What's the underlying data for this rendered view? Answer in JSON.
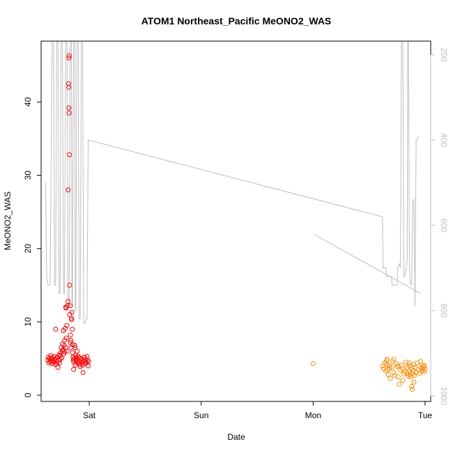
{
  "chart_data": {
    "type": "scatter",
    "title": "ATOM1 Northeast_Pacific MeONO2_WAS",
    "xlabel": "Date",
    "ylabel": "MeONO2_WAS",
    "xlim": [
      -0.43,
      3.05
    ],
    "ylim": [
      -0.85,
      48.3
    ],
    "y2lim": [
      1013,
      168
    ],
    "x_ticks": [
      {
        "value": 0,
        "label": "Sat"
      },
      {
        "value": 1,
        "label": "Sun"
      },
      {
        "value": 2,
        "label": "Mon"
      },
      {
        "value": 3,
        "label": "Tue"
      }
    ],
    "y_ticks": [
      0,
      10,
      20,
      30,
      40
    ],
    "y2_ticks": [
      200,
      400,
      600,
      800,
      1000
    ],
    "grid": false,
    "legend": "none",
    "colors": {
      "series_red": "#ff0000",
      "series_orange": "#ff8c00",
      "altitude_line": "#bebebe",
      "axis": "#000000"
    },
    "series": [
      {
        "color": "#ff0000",
        "points": [
          [
            -0.37,
            4.8
          ],
          [
            -0.365,
            5.2
          ],
          [
            -0.36,
            4.4
          ],
          [
            -0.355,
            5.0
          ],
          [
            -0.35,
            4.6
          ],
          [
            -0.345,
            5.4
          ],
          [
            -0.34,
            4.9
          ],
          [
            -0.335,
            4.3
          ],
          [
            -0.33,
            5.1
          ],
          [
            -0.325,
            4.7
          ],
          [
            -0.32,
            4.5
          ],
          [
            -0.315,
            5.3
          ],
          [
            -0.31,
            4.9
          ],
          [
            -0.305,
            4.2
          ],
          [
            -0.3,
            9.0
          ],
          [
            -0.3,
            5.0
          ],
          [
            -0.295,
            4.6
          ],
          [
            -0.29,
            4.3
          ],
          [
            -0.285,
            5.2
          ],
          [
            -0.28,
            3.8
          ],
          [
            -0.275,
            4.7
          ],
          [
            -0.27,
            5.5
          ],
          [
            -0.265,
            4.4
          ],
          [
            -0.26,
            4.9
          ],
          [
            -0.255,
            5.8
          ],
          [
            -0.25,
            6.5
          ],
          [
            -0.245,
            5.1
          ],
          [
            -0.24,
            7.0
          ],
          [
            -0.235,
            6.2
          ],
          [
            -0.23,
            5.6
          ],
          [
            -0.225,
            6.8
          ],
          [
            -0.22,
            7.5
          ],
          [
            -0.215,
            9.1
          ],
          [
            -0.21,
            12.0
          ],
          [
            -0.208,
            11.9
          ],
          [
            -0.205,
            7.8
          ],
          [
            -0.2,
            9.5
          ],
          [
            -0.198,
            6.0
          ],
          [
            -0.195,
            12.2
          ],
          [
            -0.19,
            12.8
          ],
          [
            -0.188,
            28.0
          ],
          [
            -0.185,
            42.5
          ],
          [
            -0.183,
            42.0
          ],
          [
            -0.182,
            46.0
          ],
          [
            -0.18,
            46.3
          ],
          [
            -0.182,
            39.2
          ],
          [
            -0.18,
            38.5
          ],
          [
            -0.178,
            32.8
          ],
          [
            -0.176,
            15.0
          ],
          [
            -0.175,
            11.0
          ],
          [
            -0.17,
            12.2
          ],
          [
            -0.168,
            8.2
          ],
          [
            -0.165,
            7.5
          ],
          [
            -0.162,
            6.5
          ],
          [
            -0.16,
            10.5
          ],
          [
            -0.158,
            10.3
          ],
          [
            -0.155,
            11.3
          ],
          [
            -0.152,
            9.0
          ],
          [
            -0.15,
            5.8
          ],
          [
            -0.148,
            6.9
          ],
          [
            -0.145,
            5.2
          ],
          [
            -0.142,
            4.8
          ],
          [
            -0.14,
            3.5
          ],
          [
            -0.138,
            4.5
          ],
          [
            -0.135,
            5.0
          ],
          [
            -0.13,
            6.8
          ],
          [
            -0.128,
            6.5
          ],
          [
            -0.125,
            4.1
          ],
          [
            -0.12,
            5.5
          ],
          [
            -0.118,
            4.7
          ],
          [
            -0.115,
            5.2
          ],
          [
            -0.11,
            4.9
          ],
          [
            -0.108,
            6.0
          ],
          [
            -0.105,
            4.4
          ],
          [
            -0.1,
            5.3
          ],
          [
            -0.095,
            4.6
          ],
          [
            -0.09,
            5.1
          ],
          [
            -0.085,
            4.2
          ],
          [
            -0.08,
            3.9
          ],
          [
            -0.075,
            4.8
          ],
          [
            -0.07,
            5.0
          ],
          [
            -0.065,
            4.5
          ],
          [
            -0.06,
            4.1
          ],
          [
            -0.055,
            3.1
          ],
          [
            -0.05,
            4.7
          ],
          [
            -0.045,
            5.2
          ],
          [
            -0.04,
            4.3
          ],
          [
            -0.035,
            4.9
          ],
          [
            -0.03,
            4.6
          ],
          [
            -0.025,
            4.4
          ],
          [
            -0.02,
            5.3
          ],
          [
            -0.015,
            4.8
          ],
          [
            -0.01,
            4.0
          ],
          [
            -0.005,
            4.6
          ],
          [
            -0.21,
            6.5
          ],
          [
            -0.22,
            5.9
          ],
          [
            -0.24,
            6.1
          ],
          [
            -0.26,
            5.4
          ],
          [
            -0.23,
            8.8
          ],
          [
            -0.17,
            7.2
          ]
        ]
      },
      {
        "color": "#ff8c00",
        "points": [
          [
            2.0,
            4.3
          ],
          [
            2.62,
            4.0
          ],
          [
            2.63,
            3.6
          ],
          [
            2.64,
            4.4
          ],
          [
            2.65,
            3.3
          ],
          [
            2.655,
            4.7
          ],
          [
            2.66,
            4.2
          ],
          [
            2.665,
            3.5
          ],
          [
            2.67,
            2.8
          ],
          [
            2.68,
            4.0
          ],
          [
            2.69,
            2.3
          ],
          [
            2.7,
            3.8
          ],
          [
            2.71,
            4.6
          ],
          [
            2.72,
            3.1
          ],
          [
            2.73,
            2.7
          ],
          [
            2.74,
            4.3
          ],
          [
            2.75,
            3.9
          ],
          [
            2.76,
            2.5
          ],
          [
            2.77,
            1.5
          ],
          [
            2.78,
            3.4
          ],
          [
            2.79,
            4.1
          ],
          [
            2.8,
            3.6
          ],
          [
            2.81,
            2.9
          ],
          [
            2.82,
            3.2
          ],
          [
            2.83,
            4.5
          ],
          [
            2.84,
            3.8
          ],
          [
            2.85,
            2.6
          ],
          [
            2.855,
            3.3
          ],
          [
            2.86,
            4.0
          ],
          [
            2.865,
            2.8
          ],
          [
            2.87,
            2.5
          ],
          [
            2.875,
            3.6
          ],
          [
            2.88,
            1.2
          ],
          [
            2.885,
            0.8
          ],
          [
            2.89,
            2.9
          ],
          [
            2.895,
            3.4
          ],
          [
            2.9,
            4.2
          ],
          [
            2.905,
            2.7
          ],
          [
            2.91,
            3.8
          ],
          [
            2.92,
            3.1
          ],
          [
            2.93,
            4.4
          ],
          [
            2.94,
            3.5
          ],
          [
            2.95,
            3.0
          ],
          [
            2.96,
            4.6
          ],
          [
            2.965,
            3.7
          ],
          [
            2.97,
            3.3
          ],
          [
            2.975,
            4.1
          ],
          [
            2.98,
            3.6
          ],
          [
            2.985,
            3.9
          ],
          [
            2.99,
            3.2
          ],
          [
            2.995,
            4.0
          ],
          [
            3.0,
            3.5
          ],
          [
            2.86,
            4.4
          ],
          [
            2.84,
            3.0
          ],
          [
            2.76,
            4.0
          ],
          [
            2.72,
            4.9
          ],
          [
            2.68,
            3.6
          ],
          [
            2.66,
            4.9
          ],
          [
            2.8,
            2.0
          ],
          [
            2.9,
            1.8
          ]
        ]
      }
    ],
    "altitude_line": [
      [
        -0.39,
        500
      ],
      [
        -0.38,
        720
      ],
      [
        -0.37,
        740
      ],
      [
        -0.35,
        740
      ],
      [
        -0.33,
        100
      ],
      [
        -0.32,
        100
      ],
      [
        -0.31,
        740
      ],
      [
        -0.3,
        740
      ],
      [
        -0.29,
        100
      ],
      [
        -0.28,
        100
      ],
      [
        -0.27,
        760
      ],
      [
        -0.26,
        760
      ],
      [
        -0.25,
        100
      ],
      [
        -0.24,
        100
      ],
      [
        -0.23,
        760
      ],
      [
        -0.22,
        760
      ],
      [
        -0.21,
        100
      ],
      [
        -0.2,
        100
      ],
      [
        -0.19,
        770
      ],
      [
        -0.18,
        780
      ],
      [
        -0.17,
        100
      ],
      [
        -0.16,
        100
      ],
      [
        -0.155,
        790
      ],
      [
        -0.15,
        790
      ],
      [
        -0.14,
        100
      ],
      [
        -0.13,
        100
      ],
      [
        -0.125,
        800
      ],
      [
        -0.12,
        800
      ],
      [
        -0.11,
        100
      ],
      [
        -0.1,
        100
      ],
      [
        -0.09,
        820
      ],
      [
        -0.08,
        820
      ],
      [
        -0.07,
        100
      ],
      [
        -0.06,
        100
      ],
      [
        -0.05,
        830
      ],
      [
        -0.04,
        830
      ],
      [
        -0.03,
        820
      ],
      [
        -0.02,
        820
      ],
      [
        -0.01,
        400
      ],
      [
        2.62,
        580
      ],
      [
        2.625,
        700
      ],
      [
        2.65,
        700
      ],
      [
        2.655,
        720
      ],
      [
        2.7,
        720
      ],
      [
        2.705,
        740
      ],
      [
        2.75,
        740
      ],
      [
        2.755,
        700
      ],
      [
        2.77,
        690
      ],
      [
        2.78,
        700
      ],
      [
        2.79,
        100
      ],
      [
        2.8,
        100
      ],
      [
        2.81,
        720
      ],
      [
        2.82,
        720
      ],
      [
        2.83,
        700
      ],
      [
        2.84,
        680
      ],
      [
        2.845,
        100
      ],
      [
        2.85,
        100
      ],
      [
        2.86,
        700
      ],
      [
        2.87,
        740
      ],
      [
        2.88,
        740
      ],
      [
        2.89,
        540
      ],
      [
        2.9,
        540
      ],
      [
        2.91,
        790
      ],
      [
        2.92,
        400
      ],
      [
        2.93,
        400
      ],
      [
        2.94,
        390
      ],
      null,
      [
        2.0,
        620
      ],
      [
        2.96,
        760
      ]
    ]
  }
}
